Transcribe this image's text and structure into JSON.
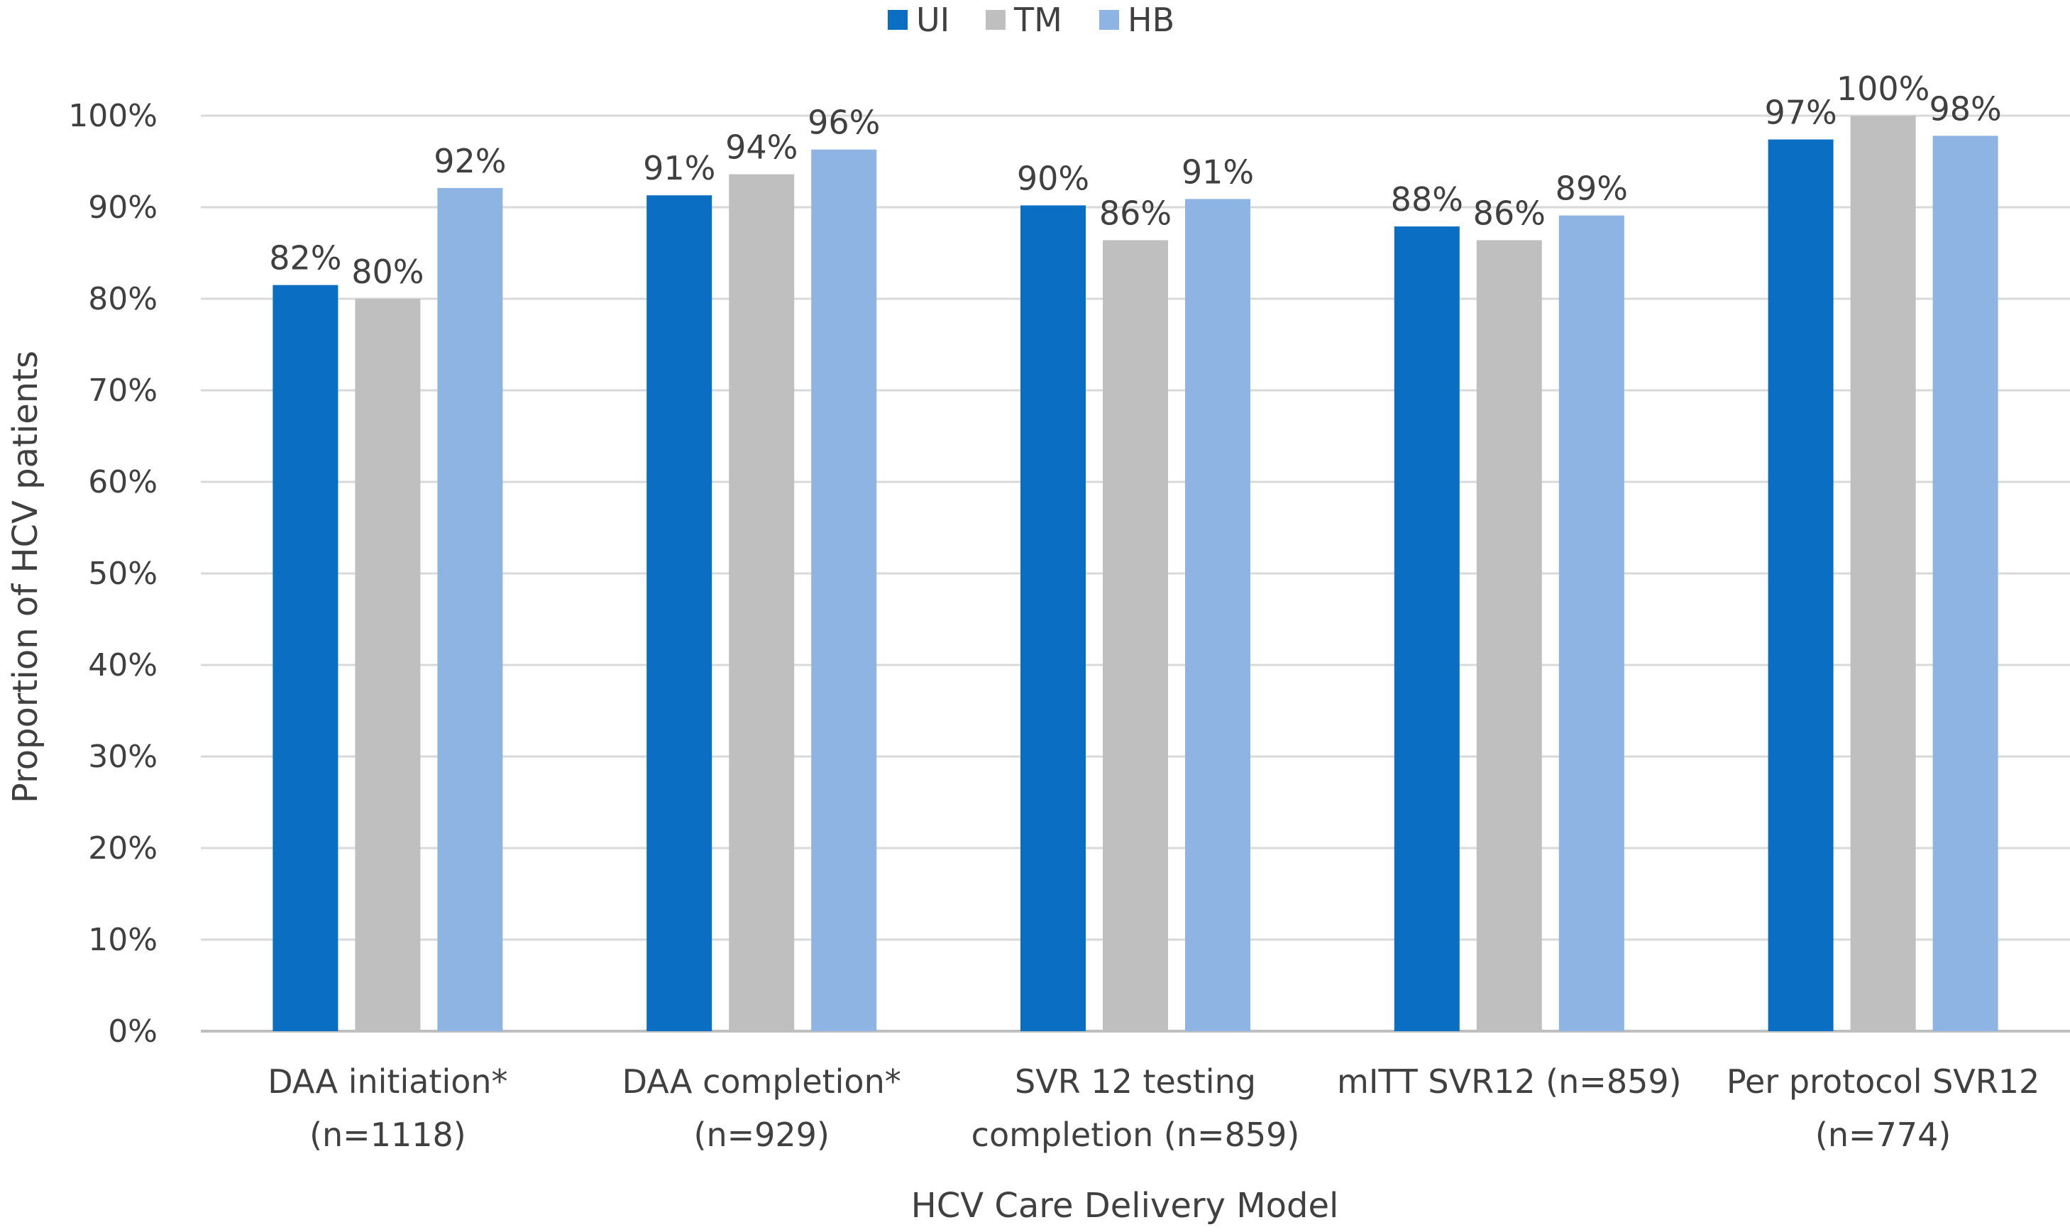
{
  "chart_data": {
    "type": "bar",
    "title": "",
    "xlabel": "HCV Care Delivery Model",
    "ylabel": "Proportion of HCV patients",
    "ylim": [
      0,
      100
    ],
    "yticks": [
      0,
      10,
      20,
      30,
      40,
      50,
      60,
      70,
      80,
      90,
      100
    ],
    "ytick_labels": [
      "0%",
      "10%",
      "20%",
      "30%",
      "40%",
      "50%",
      "60%",
      "70%",
      "80%",
      "90%",
      "100%"
    ],
    "grid": true,
    "legend_position": "top-center",
    "categories": [
      [
        "DAA initiation*",
        "(n=1118)"
      ],
      [
        "DAA completion*",
        "(n=929)"
      ],
      [
        "SVR 12 testing",
        "completion (n=859)"
      ],
      [
        "mITT SVR12 (n=859)"
      ],
      [
        "Per protocol SVR12",
        "(n=774)"
      ]
    ],
    "series": [
      {
        "name": "UI",
        "color": "#0a6ec2",
        "values": [
          81.5,
          91.3,
          90.2,
          87.9,
          97.4
        ],
        "labels": [
          "82%",
          "91%",
          "90%",
          "88%",
          "97%"
        ]
      },
      {
        "name": "TM",
        "color": "#bfbfbf",
        "values": [
          80.0,
          93.6,
          86.4,
          86.4,
          100.0
        ],
        "labels": [
          "80%",
          "94%",
          "86%",
          "86%",
          "100%"
        ]
      },
      {
        "name": "HB",
        "color": "#8eb4e3",
        "values": [
          92.1,
          96.3,
          90.9,
          89.1,
          97.8
        ],
        "labels": [
          "92%",
          "96%",
          "91%",
          "89%",
          "98%"
        ]
      }
    ]
  }
}
